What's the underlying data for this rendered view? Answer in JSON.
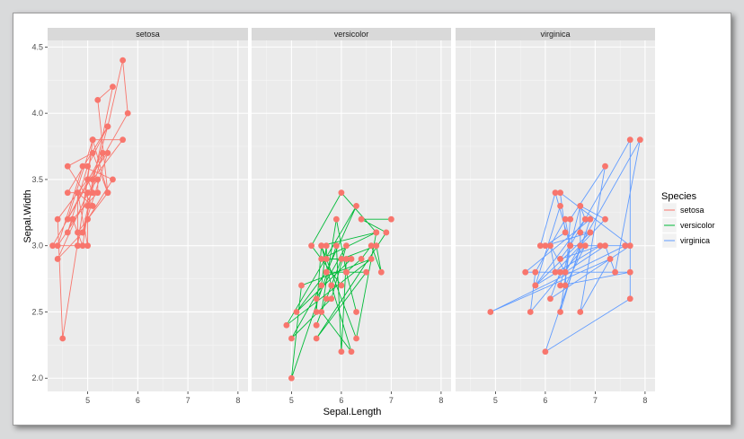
{
  "chart_data": {
    "type": "scatter",
    "mode": "points+lines",
    "facet_by": "Species",
    "xlabel": "Sepal.Length",
    "ylabel": "Sepal.Width",
    "xlim": [
      4.2,
      8.2
    ],
    "ylim": [
      1.9,
      4.55
    ],
    "x_ticks": [
      5,
      6,
      7,
      8
    ],
    "y_ticks": [
      "2.0",
      "2.5",
      "3.0",
      "3.5",
      "4.0",
      "4.5"
    ],
    "point_color": "#F8766D",
    "legend": {
      "title": "Species",
      "position": "right",
      "entries": [
        {
          "label": "setosa",
          "color": "#F8766D"
        },
        {
          "label": "versicolor",
          "color": "#00BA38"
        },
        {
          "label": "virginica",
          "color": "#619CFF"
        }
      ]
    },
    "series": [
      {
        "name": "setosa",
        "color": "#F8766D",
        "x": [
          5.1,
          4.9,
          4.7,
          4.6,
          5.0,
          5.4,
          4.6,
          5.0,
          4.4,
          4.9,
          5.4,
          4.8,
          4.8,
          4.3,
          5.8,
          5.7,
          5.4,
          5.1,
          5.7,
          5.1,
          5.4,
          5.1,
          4.6,
          5.1,
          4.8,
          5.0,
          5.0,
          5.2,
          5.2,
          4.7,
          4.8,
          5.4,
          5.2,
          5.5,
          4.9,
          5.0,
          5.5,
          4.9,
          4.4,
          5.1,
          5.0,
          4.5,
          4.4,
          5.0,
          5.1,
          4.8,
          5.1,
          4.6,
          5.3,
          5.0
        ],
        "y": [
          3.5,
          3.0,
          3.2,
          3.1,
          3.6,
          3.9,
          3.4,
          3.4,
          2.9,
          3.1,
          3.7,
          3.4,
          3.0,
          3.0,
          4.0,
          4.4,
          3.9,
          3.5,
          3.8,
          3.8,
          3.4,
          3.7,
          3.6,
          3.3,
          3.4,
          3.0,
          3.4,
          3.5,
          3.4,
          3.2,
          3.1,
          3.4,
          4.1,
          4.2,
          3.1,
          3.2,
          3.5,
          3.6,
          3.0,
          3.4,
          3.5,
          2.3,
          3.2,
          3.5,
          3.8,
          3.0,
          3.8,
          3.2,
          3.7,
          3.3
        ]
      },
      {
        "name": "versicolor",
        "color": "#00BA38",
        "x": [
          7.0,
          6.4,
          6.9,
          5.5,
          6.5,
          5.7,
          6.3,
          4.9,
          6.6,
          5.2,
          5.0,
          5.9,
          6.0,
          6.1,
          5.6,
          6.7,
          5.6,
          5.8,
          6.2,
          5.6,
          5.9,
          6.1,
          6.3,
          6.1,
          6.4,
          6.6,
          6.8,
          6.7,
          6.0,
          5.7,
          5.5,
          5.5,
          5.8,
          6.0,
          5.4,
          6.0,
          6.7,
          6.3,
          5.6,
          5.5,
          5.5,
          6.1,
          5.8,
          5.0,
          5.6,
          5.7,
          5.7,
          6.2,
          5.1,
          5.7
        ],
        "y": [
          3.2,
          3.2,
          3.1,
          2.3,
          2.8,
          2.8,
          3.3,
          2.4,
          2.9,
          2.7,
          2.0,
          3.0,
          2.2,
          2.9,
          2.9,
          3.1,
          3.0,
          2.7,
          2.2,
          2.5,
          3.2,
          2.8,
          2.5,
          2.8,
          2.9,
          3.0,
          2.8,
          3.0,
          2.9,
          2.6,
          2.4,
          2.4,
          2.7,
          2.7,
          3.0,
          3.4,
          3.1,
          2.3,
          3.0,
          2.5,
          2.6,
          3.0,
          2.6,
          2.3,
          2.7,
          3.0,
          2.9,
          2.9,
          2.5,
          2.8
        ]
      },
      {
        "name": "virginica",
        "color": "#619CFF",
        "x": [
          6.3,
          5.8,
          7.1,
          6.3,
          6.5,
          7.6,
          4.9,
          7.3,
          6.7,
          7.2,
          6.5,
          6.4,
          6.8,
          5.7,
          5.8,
          6.4,
          6.5,
          7.7,
          7.7,
          6.0,
          6.9,
          5.6,
          7.7,
          6.3,
          6.7,
          7.2,
          6.2,
          6.1,
          6.4,
          7.2,
          7.4,
          7.9,
          6.4,
          6.3,
          6.1,
          7.7,
          6.3,
          6.4,
          6.0,
          6.9,
          6.7,
          6.9,
          5.8,
          6.8,
          6.7,
          6.7,
          6.3,
          6.5,
          6.2,
          5.9
        ],
        "y": [
          3.3,
          2.7,
          3.0,
          2.9,
          3.0,
          3.0,
          2.5,
          2.9,
          2.5,
          3.6,
          3.2,
          2.7,
          3.0,
          2.5,
          2.8,
          3.2,
          3.0,
          3.8,
          2.6,
          2.2,
          3.2,
          2.8,
          2.8,
          2.7,
          3.3,
          3.2,
          2.8,
          3.0,
          2.8,
          3.0,
          2.8,
          3.8,
          2.8,
          2.8,
          2.6,
          3.0,
          3.4,
          3.1,
          3.0,
          3.1,
          3.1,
          3.1,
          2.7,
          3.2,
          3.3,
          3.0,
          2.5,
          3.0,
          3.4,
          3.0
        ]
      }
    ]
  }
}
